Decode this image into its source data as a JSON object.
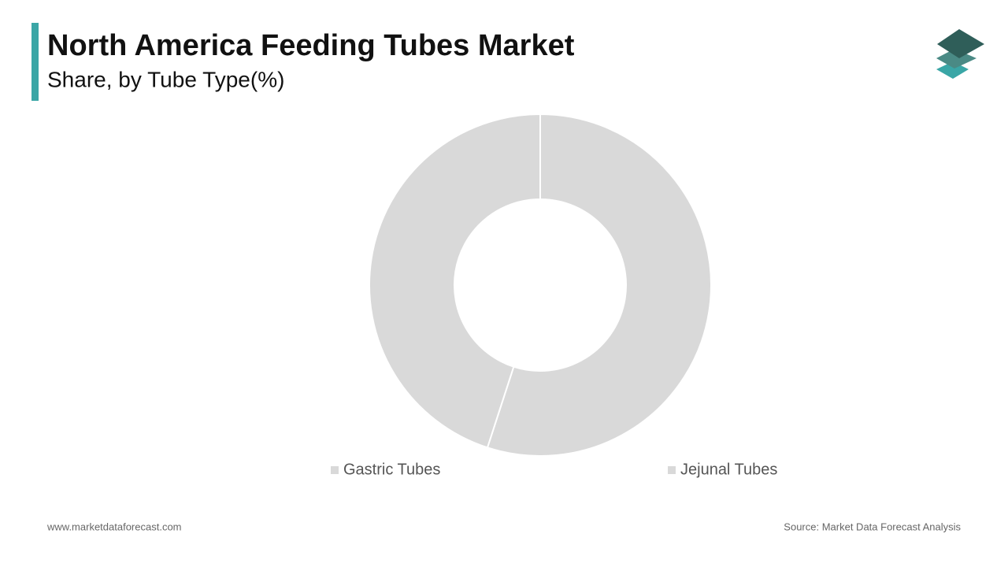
{
  "chart_data": {
    "type": "donut",
    "title": "North America Feeding Tubes Market",
    "subtitle": "Share, by Tube Type(%)",
    "categories": [
      "Gastric Tubes",
      "Jejunal Tubes"
    ],
    "values": [
      55,
      45
    ],
    "colors": [
      "#d9d9d9",
      "#d9d9d9"
    ]
  },
  "footer": {
    "website": "www.marketdataforecast.com",
    "source": "Source: Market Data Forecast Analysis"
  }
}
